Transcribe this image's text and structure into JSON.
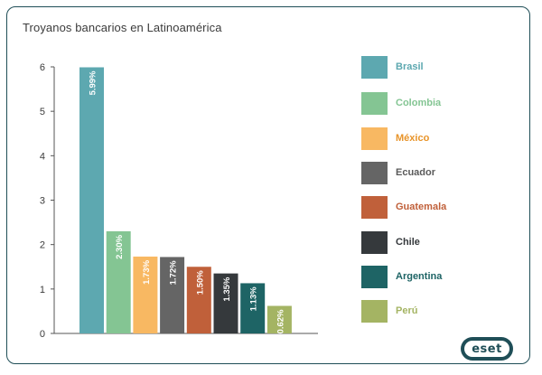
{
  "chart_data": {
    "type": "bar",
    "title": "Troyanos bancarios en Latinoamérica",
    "categories": [
      "Brasil",
      "Colombia",
      "México",
      "Ecuador",
      "Guatemala",
      "Chile",
      "Argentina",
      "Perú"
    ],
    "values": [
      5.99,
      2.3,
      1.73,
      1.72,
      1.5,
      1.35,
      1.13,
      0.62
    ],
    "data_labels": [
      "5.99%",
      "2.30%",
      "1.73%",
      "1.72%",
      "1.50%",
      "1.35%",
      "1.13%",
      "0.62%"
    ],
    "colors": [
      "#5da8b0",
      "#84c593",
      "#f8b862",
      "#656565",
      "#c0603a",
      "#35393c",
      "#1e6465",
      "#a4b463"
    ],
    "ylim": [
      0,
      6
    ],
    "yticks": [
      "0",
      "1",
      "2",
      "3",
      "4",
      "5",
      "6"
    ],
    "grid": false,
    "legend_position": "right",
    "legend": [
      {
        "label": "Brasil",
        "color": "#5da8b0",
        "text_color": "#5da8b0"
      },
      {
        "label": "Colombia",
        "color": "#84c593",
        "text_color": "#84c593"
      },
      {
        "label": "México",
        "color": "#f8b862",
        "text_color": "#e8942a"
      },
      {
        "label": "Ecuador",
        "color": "#656565",
        "text_color": "#5a5a5a"
      },
      {
        "label": "Guatemala",
        "color": "#c0603a",
        "text_color": "#c0603a"
      },
      {
        "label": "Chile",
        "color": "#35393c",
        "text_color": "#35393c"
      },
      {
        "label": "Argentina",
        "color": "#1e6465",
        "text_color": "#1e6465"
      },
      {
        "label": "Perú",
        "color": "#a4b463",
        "text_color": "#a4b463"
      }
    ]
  },
  "logo": {
    "text": "eset",
    "trademark": "®",
    "color": "#1f4e57"
  }
}
